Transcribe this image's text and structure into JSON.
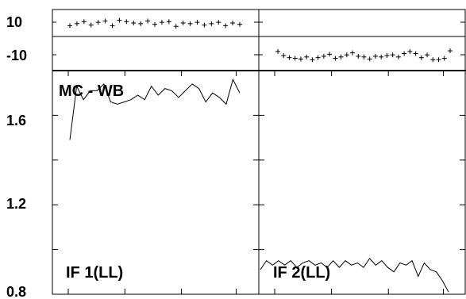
{
  "chart_data": {
    "type": "line",
    "top_strip": {
      "title": "",
      "ylabels": [
        "10",
        "-10"
      ]
    },
    "main": {
      "ylim": [
        0.8,
        1.8
      ],
      "yticks": [
        "1.6",
        "1.2",
        "0.8"
      ],
      "label": "MC - WB"
    },
    "panels": [
      {
        "name": "IF 1(LL)",
        "phase_marks_upper": [
          10.6,
          10.9,
          11.2,
          10.7,
          11.1,
          11.3,
          10.6,
          11.4,
          11.2,
          11.0,
          10.9,
          11.3,
          10.8,
          11.1,
          11.2,
          10.5,
          11.0,
          10.9,
          11.1,
          10.7,
          10.9,
          11.1,
          10.6,
          11.0,
          10.8
        ],
        "ratio": [
          1.49,
          1.73,
          1.67,
          1.71,
          1.71,
          1.74,
          1.66,
          1.65,
          1.66,
          1.67,
          1.69,
          1.67,
          1.73,
          1.69,
          1.72,
          1.71,
          1.68,
          1.71,
          1.74,
          1.72,
          1.66,
          1.7,
          1.68,
          1.65,
          1.76,
          1.7
        ]
      },
      {
        "name": "IF 2(LL)",
        "phase_marks_lower": [
          -11.2,
          -11.8,
          -12.1,
          -12.2,
          -12.3,
          -12.0,
          -12.4,
          -12.1,
          -11.9,
          -11.6,
          -12.2,
          -12.0,
          -11.7,
          -11.4,
          -11.9,
          -12.0,
          -12.3,
          -11.9,
          -12.0,
          -11.8,
          -11.7,
          -12.0,
          -11.5,
          -11.2,
          -11.5,
          -12.1,
          -11.7,
          -12.4,
          -12.4,
          -12.2,
          -11.1
        ],
        "ratio": [
          0.91,
          0.95,
          0.93,
          0.95,
          0.93,
          0.95,
          0.92,
          0.94,
          0.95,
          0.93,
          0.94,
          0.92,
          0.95,
          0.92,
          0.95,
          0.93,
          0.94,
          0.92,
          0.96,
          0.93,
          0.95,
          0.92,
          0.9,
          0.94,
          0.93,
          0.95,
          0.88,
          0.94,
          0.91,
          0.9,
          0.86,
          0.81
        ]
      }
    ]
  }
}
